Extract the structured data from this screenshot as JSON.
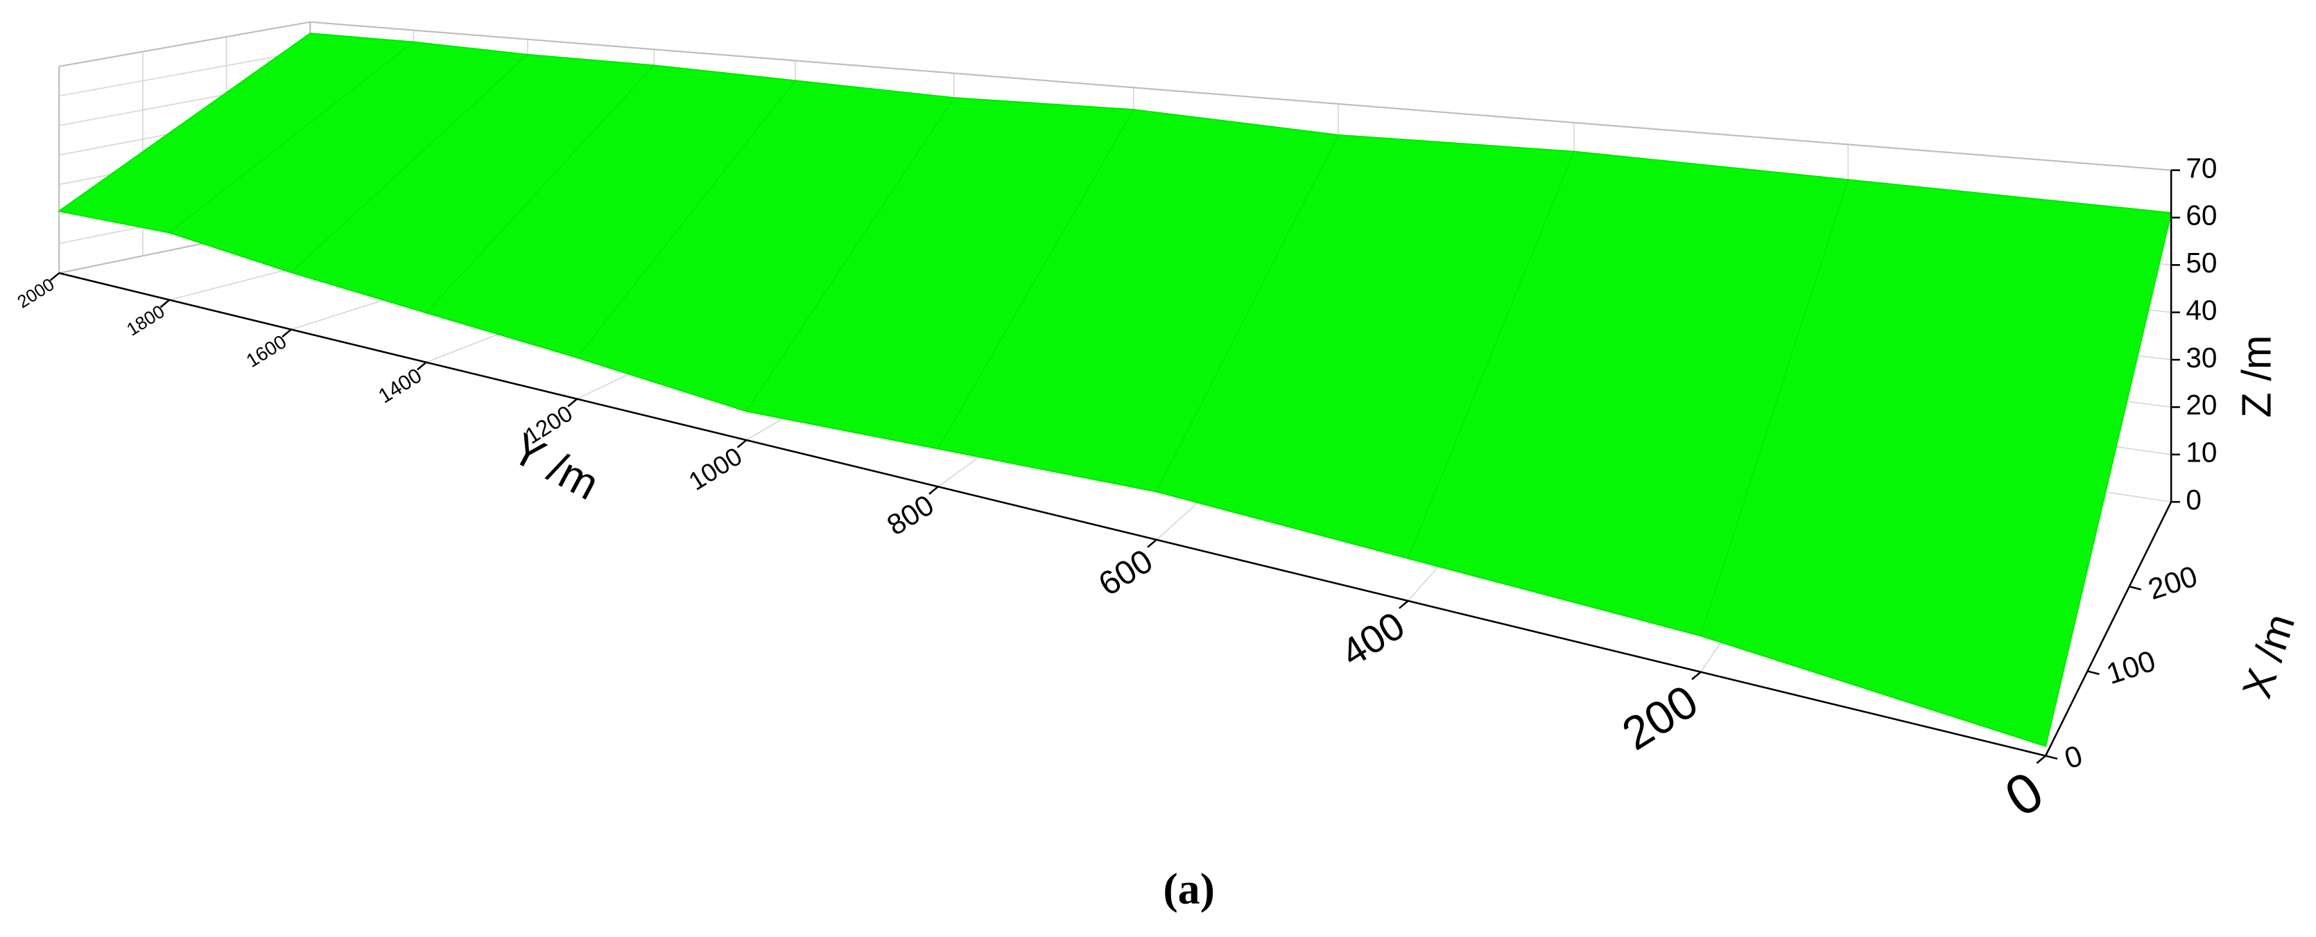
{
  "chart_data": {
    "type": "surface3d",
    "caption": "(a)",
    "xlabel": "X /m",
    "ylabel": "Y /m",
    "zlabel": "Z /m",
    "xlim": [
      0,
      300
    ],
    "ylim": [
      0,
      2000
    ],
    "zlim": [
      0,
      70
    ],
    "xticks": [
      0,
      100,
      200
    ],
    "yticks": [
      0,
      200,
      400,
      600,
      800,
      1000,
      1200,
      1400,
      1600,
      1800,
      2000
    ],
    "zticks": [
      0,
      10,
      20,
      30,
      40,
      50,
      60,
      70
    ],
    "grid": true,
    "color": "#06f706",
    "mesh_color": "#00e400",
    "y": [
      0,
      200,
      400,
      600,
      800,
      1000,
      1200,
      1400,
      1600,
      1800,
      2000
    ],
    "edges": [
      {
        "x": 0,
        "z": [
          2,
          8,
          10,
          12,
          10,
          8,
          12,
          15,
          18,
          22,
          21
        ]
      },
      {
        "x": 300,
        "z": [
          61,
          62,
          63,
          62,
          64,
          63,
          64,
          65,
          65,
          66,
          66
        ]
      }
    ]
  }
}
